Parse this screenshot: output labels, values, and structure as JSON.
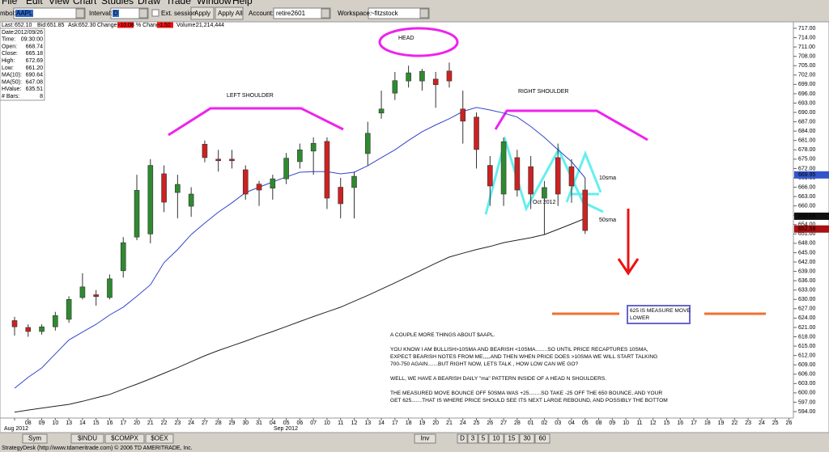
{
  "menu": [
    "File",
    "Edit",
    "View",
    "Chart",
    "Studies",
    "Draw",
    "Trade",
    "Window",
    "Help"
  ],
  "toolbar": {
    "symbol_label": "mbol:",
    "symbol": "AAPL",
    "interval_label": "Interval:",
    "interval": "D",
    "ext_session": "Ext. session",
    "apply": "Apply",
    "apply_all": "Apply All",
    "account_label": "Account:",
    "account": "retire2601",
    "workspace_label": "Workspace:",
    "workspace": "~fitzstock"
  },
  "quote_bar": [
    {
      "label": "Last:",
      "value": "652.10"
    },
    {
      "label": "Bid:",
      "value": "651.85"
    },
    {
      "label": "Ask:",
      "value": "652.30"
    },
    {
      "label": "Change:",
      "value": "-10.08"
    },
    {
      "label": "% Change:",
      "value": "-1.52"
    },
    {
      "label": "Volume:",
      "value": "21,214,444"
    }
  ],
  "info_panel": [
    {
      "label": "Date:",
      "value": "2012/09/26"
    },
    {
      "label": "Time:",
      "value": "09:30:00"
    },
    {
      "label": "Open:",
      "value": "668.74"
    },
    {
      "label": "Close:",
      "value": "665.18"
    },
    {
      "label": "High:",
      "value": "672.69"
    },
    {
      "label": "Low:",
      "value": "661.20"
    },
    {
      "label": "MA(10):",
      "value": "690.64"
    },
    {
      "label": "MA(50):",
      "value": "647.08"
    },
    {
      "label": "HValue:",
      "value": "635.51"
    },
    {
      "label": "# Bars:",
      "value": "8"
    }
  ],
  "chart_data": {
    "type": "candlestick",
    "categories": [
      null,
      "08",
      "09",
      "10",
      "13",
      "14",
      "15",
      "16",
      "17",
      "20",
      "21",
      "22",
      "23",
      "24",
      "27",
      "28",
      "29",
      "30",
      "31",
      "04",
      "05",
      "06",
      "07",
      "10",
      "11",
      "12",
      "13",
      "14",
      "17",
      "18",
      "19",
      "20",
      "21",
      "24",
      "25",
      "26",
      "27",
      "28",
      "01",
      "02",
      "03",
      "04",
      "05",
      "08",
      "09",
      "10",
      "11",
      "12",
      "15",
      "16",
      "17",
      "18",
      "19",
      "22",
      "23",
      "24",
      "25",
      "26"
    ],
    "months": [
      "Aug 2012",
      "Sep 2012",
      "Oct 2012"
    ],
    "open": [
      623.2,
      621,
      619.7,
      621.2,
      623.6,
      630.6,
      631.5,
      630.6,
      639.2,
      650,
      651,
      670.3,
      664.3,
      659.9,
      679.8,
      675,
      675,
      671.6,
      667,
      665.7,
      668.7,
      674.2,
      677.6,
      680.7,
      666,
      665.9,
      676.8,
      689.8,
      696.2,
      700.1,
      700.1,
      700.7,
      703.3,
      691.1,
      688.5,
      673,
      663.8,
      675.5,
      672.6,
      662.5,
      675.5,
      672.6,
      665.1,
      null,
      null,
      null,
      null,
      null,
      null,
      null,
      null,
      null,
      null,
      null,
      null,
      null,
      null,
      null
    ],
    "high": [
      624.4,
      622,
      622,
      626,
      631,
      638.4,
      633,
      638,
      650,
      670,
      675,
      673,
      670,
      666,
      681,
      678,
      678,
      673,
      668,
      670,
      677,
      680,
      682,
      682,
      669,
      671,
      687,
      697,
      703,
      705,
      704,
      703,
      706,
      697,
      690,
      676,
      682,
      678,
      676,
      668,
      680,
      675,
      669,
      null,
      null,
      null,
      null,
      null,
      null,
      null,
      null,
      null,
      null,
      null,
      null,
      null,
      null,
      null
    ],
    "low": [
      618.4,
      618,
      618.7,
      620,
      622.5,
      630,
      628,
      630,
      637,
      649,
      648,
      658,
      656,
      656.5,
      674,
      671,
      672,
      662,
      660,
      662,
      667,
      672,
      670,
      659,
      656,
      656,
      673,
      688,
      694,
      698,
      697,
      691.5,
      698,
      680,
      672,
      660,
      660,
      663,
      659,
      650.8,
      660,
      661,
      651,
      null,
      null,
      null,
      null,
      null,
      null,
      null,
      null,
      null,
      null,
      null,
      null,
      null,
      null,
      null
    ],
    "close": [
      621.2,
      619.7,
      621.2,
      624.8,
      630,
      634,
      630.9,
      636.6,
      648.2,
      665,
      673,
      661.2,
      666.9,
      663.8,
      675.5,
      674.5,
      674.5,
      663.8,
      665.1,
      668.7,
      675.3,
      678,
      680.1,
      662.5,
      660.7,
      669.5,
      683.3,
      691.1,
      700.2,
      702.7,
      703.2,
      698.9,
      700.1,
      687.2,
      678.1,
      666.4,
      680.6,
      665.1,
      663.8,
      665.9,
      663.8,
      666.4,
      652.1,
      null,
      null,
      null,
      null,
      null,
      null,
      null,
      null,
      null,
      null,
      null,
      null,
      null,
      null,
      null
    ],
    "up_color": "#2f8a2f",
    "down_color": "#cc2222",
    "series": [
      {
        "name": "10sma",
        "color": "#3344cc",
        "values": [
          601.5,
          605,
          608,
          612.5,
          617,
          619.5,
          622,
          625,
          627.5,
          631,
          634.7,
          641.8,
          646,
          650.8,
          654.5,
          658,
          661,
          664.3,
          666,
          667.7,
          669.3,
          670.8,
          671,
          671,
          670.3,
          670.8,
          672.9,
          675.5,
          678,
          681,
          683.8,
          686,
          688,
          690.3,
          691.6,
          690.8,
          689.8,
          688.5,
          685.5,
          682,
          678,
          674.2,
          669,
          null,
          null,
          null,
          null,
          null,
          null,
          null,
          null,
          null,
          null,
          null,
          null,
          null,
          null,
          null
        ]
      },
      {
        "name": "50sma",
        "color": "#222222",
        "values": [
          593.8,
          594.5,
          595.1,
          595.7,
          596.3,
          597.3,
          598.4,
          599.5,
          601.2,
          602.8,
          604.5,
          606.3,
          608.1,
          610,
          611.9,
          613.6,
          615.1,
          616.6,
          618.2,
          619.7,
          621.3,
          622.9,
          624.5,
          626,
          627.5,
          629.4,
          631.3,
          633.3,
          635.3,
          637.4,
          639.5,
          641.6,
          643.6,
          644.8,
          646,
          647,
          648.2,
          649,
          649.8,
          650.8,
          652.5,
          654.2,
          656,
          null,
          null,
          null,
          null,
          null,
          null,
          null,
          null,
          null,
          null,
          null,
          null,
          null,
          null,
          null
        ]
      }
    ],
    "price_markers": [
      669.95,
      656.69,
      652.59
    ],
    "price_marker_colors": [
      "#3355cc",
      "#111111",
      "#aa1111"
    ],
    "ylim": [
      594,
      717
    ],
    "yticks": [
      {
        "value": 717,
        "label": "717.00"
      },
      {
        "value": 714,
        "label": "714.00"
      },
      {
        "value": 711,
        "label": "711.00"
      },
      {
        "value": 708,
        "label": "708.00"
      },
      {
        "value": 705,
        "label": "705.00"
      },
      {
        "value": 702,
        "label": "702.00"
      },
      {
        "value": 699,
        "label": "699.00"
      },
      {
        "value": 696,
        "label": "696.00"
      },
      {
        "value": 693,
        "label": "693.00"
      },
      {
        "value": 690,
        "label": "690.00"
      },
      {
        "value": 687,
        "label": "687.00"
      },
      {
        "value": 684,
        "label": "684.00"
      },
      {
        "value": 681,
        "label": "681.00"
      },
      {
        "value": 678,
        "label": "678.00"
      },
      {
        "value": 675,
        "label": "675.00"
      },
      {
        "value": 672,
        "label": "672.00"
      },
      {
        "value": 669,
        "label": "669.00"
      },
      {
        "value": 666,
        "label": "666.00"
      },
      {
        "value": 663,
        "label": "663.00"
      },
      {
        "value": 660,
        "label": "660.00"
      },
      {
        "value": 657,
        "label": "657.00"
      },
      {
        "value": 654,
        "label": "654.00"
      },
      {
        "value": 651,
        "label": "651.00"
      },
      {
        "value": 648,
        "label": "648.00"
      },
      {
        "value": 645,
        "label": "645.00"
      },
      {
        "value": 642,
        "label": "642.00"
      },
      {
        "value": 639,
        "label": "639.00"
      },
      {
        "value": 636,
        "label": "636.00"
      },
      {
        "value": 633,
        "label": "633.00"
      },
      {
        "value": 630,
        "label": "630.00"
      },
      {
        "value": 627,
        "label": "627.00"
      },
      {
        "value": 624,
        "label": "624.00"
      },
      {
        "value": 621,
        "label": "621.00"
      },
      {
        "value": 618,
        "label": "618.00"
      },
      {
        "value": 615,
        "label": "615.00"
      },
      {
        "value": 612,
        "label": "612.00"
      },
      {
        "value": 609,
        "label": "609.00"
      },
      {
        "value": 606,
        "label": "606.00"
      },
      {
        "value": 603,
        "label": "603.00"
      },
      {
        "value": 600,
        "label": "600.00"
      },
      {
        "value": 597,
        "label": "597.00"
      },
      {
        "value": 594,
        "label": "594.00"
      }
    ],
    "annotations": {
      "head": "HEAD",
      "left_shoulder": "LEFT SHOULDER",
      "right_shoulder": "RIGHT SHOULDER",
      "measure_box": [
        "625 IS MEASURE MOVE",
        "LOWER"
      ],
      "notes": [
        "A COUPLE MORE THINGS ABOUT $AAPL.",
        "YOU KNOW I AM BULLISH>10SMA AND BEARISH <10SMA........SO UNTIL PRICE RECAPTURES 10SMA,",
        "EXPECT BEARISH NOTES FROM ME,,,,,AND THEN WHEN PRICE DOES >10SMA WE WILL START TALKING",
        "700-750 AGAIN.......BUT RIGHT NOW, LETS TALK , HOW LOW CAN WE GO?",
        "WELL, WE HAVE A BEARISH DAILY \"ma\" PATTERN INSIDE OF A HEAD N SHOULDERS.",
        "THE MEASURED MOVE BOUNCE OFF 50SMA WAS +25........SO TAKE -25 OFF THE 650 BOUNCE, AND YOUR",
        "GET 625.......THAT IS WHERE PRICE SHOULD SEE ITS NEXT LARGE REBOUND, AND POSSIBLY THE BOTTOM"
      ]
    }
  },
  "tabs": {
    "sym": "Sym",
    "symbols": [
      "$INDU",
      "$COMPX",
      "$OEX"
    ],
    "inv": "Inv",
    "intervals": [
      "D",
      "3",
      "5",
      "10",
      "15",
      "30",
      "60"
    ]
  },
  "status": "StrategyDesk (http://www.tdameritrade.com) © 2006 TD AMERITRADE, Inc."
}
